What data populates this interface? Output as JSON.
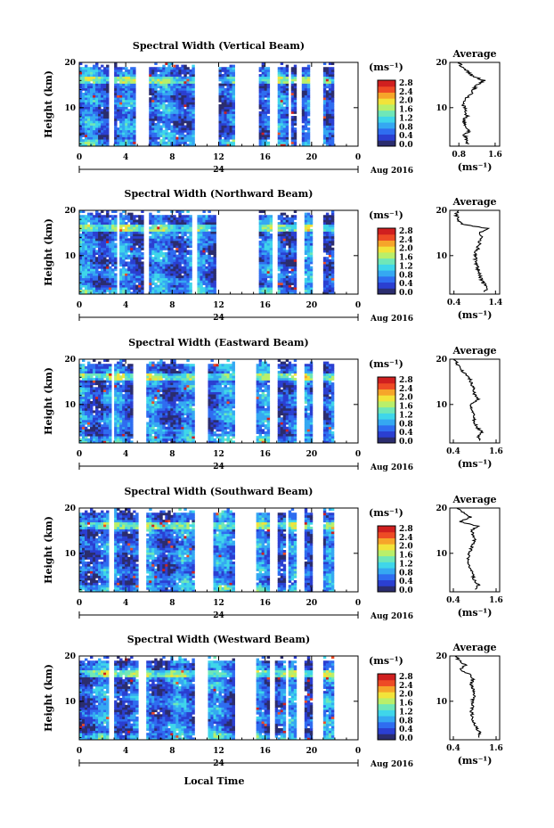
{
  "figure": {
    "xlabel": "Local Time",
    "date_label": "Aug 2016",
    "day_label": "24",
    "colorbar_unit": "(ms⁻¹)",
    "colorbar_ticks": [
      "0.0",
      "0.4",
      "0.8",
      "1.2",
      "1.6",
      "2.0",
      "2.4",
      "2.8"
    ],
    "avg_title": "Average",
    "avg_xlabel": "(ms⁻¹)",
    "colors": [
      "#2b2d6e",
      "#2b3fd1",
      "#2f6df0",
      "#35a8f2",
      "#3fd6ea",
      "#6fe7b8",
      "#b9ef6a",
      "#f2e33a",
      "#f6a52a",
      "#ee4b25",
      "#d01f1f"
    ]
  },
  "chart_data": [
    {
      "type": "heatmap",
      "title": "Spectral Width (Vertical Beam)",
      "ylabel": "Height (km)",
      "x_ticks": [
        "0",
        "4",
        "8",
        "12",
        "16",
        "20",
        "0"
      ],
      "xlim": [
        0,
        24
      ],
      "y_ticks": [
        "20",
        "10"
      ],
      "ylim": [
        1.5,
        20
      ],
      "clim": [
        0.0,
        3.0
      ],
      "gaps": [
        [
          2.5,
          3.0
        ],
        [
          4.9,
          5.9
        ],
        [
          10.0,
          11.9
        ],
        [
          13.3,
          15.5
        ],
        [
          16.5,
          17.1
        ],
        [
          17.9,
          18.2
        ],
        [
          18.6,
          19.2
        ],
        [
          19.9,
          21.1
        ]
      ],
      "average": {
        "x_ticks": [
          "0.8",
          "1.6"
        ],
        "xlim": [
          0.6,
          1.7
        ],
        "y_ticks": [
          "20",
          "10"
        ],
        "profile": [
          [
            2,
            1.0
          ],
          [
            3,
            0.96
          ],
          [
            4,
            0.92
          ],
          [
            5,
            1.05
          ],
          [
            6,
            0.95
          ],
          [
            7,
            0.9
          ],
          [
            8,
            0.98
          ],
          [
            9,
            0.96
          ],
          [
            10,
            0.92
          ],
          [
            11,
            0.9
          ],
          [
            12,
            0.95
          ],
          [
            13,
            1.05
          ],
          [
            14,
            1.12
          ],
          [
            15,
            1.18
          ],
          [
            16,
            1.35
          ],
          [
            17,
            1.1
          ],
          [
            18,
            1.0
          ],
          [
            19,
            0.85
          ],
          [
            20,
            0.8
          ]
        ]
      }
    },
    {
      "type": "heatmap",
      "title": "Spectral Width (Northward Beam)",
      "ylabel": "Height (km)",
      "x_ticks": [
        "0",
        "4",
        "8",
        "12",
        "16",
        "20",
        "0"
      ],
      "xlim": [
        0,
        24
      ],
      "y_ticks": [
        "20",
        "10"
      ],
      "ylim": [
        1.5,
        20
      ],
      "clim": [
        0.0,
        3.0
      ],
      "gaps": [
        [
          3.2,
          3.5
        ],
        [
          5.5,
          6.1
        ],
        [
          9.7,
          10.2
        ],
        [
          11.8,
          15.5
        ],
        [
          16.6,
          17.1
        ],
        [
          17.9,
          18.1
        ],
        [
          18.7,
          19.3
        ],
        [
          20.0,
          21.0
        ]
      ],
      "average": {
        "x_ticks": [
          "0.4",
          "1.4"
        ],
        "xlim": [
          0.3,
          1.5
        ],
        "y_ticks": [
          "20",
          "10"
        ],
        "profile": [
          [
            2,
            1.15
          ],
          [
            3,
            1.2
          ],
          [
            4,
            1.1
          ],
          [
            5,
            1.05
          ],
          [
            6,
            1.0
          ],
          [
            7,
            0.98
          ],
          [
            8,
            0.95
          ],
          [
            9,
            0.92
          ],
          [
            10,
            0.9
          ],
          [
            11,
            0.95
          ],
          [
            12,
            0.98
          ],
          [
            13,
            1.02
          ],
          [
            14,
            1.05
          ],
          [
            15,
            1.0
          ],
          [
            16,
            1.2
          ],
          [
            17,
            0.6
          ],
          [
            18,
            0.5
          ],
          [
            19,
            0.45
          ],
          [
            20,
            0.5
          ]
        ]
      }
    },
    {
      "type": "heatmap",
      "title": "Spectral Width (Eastward Beam)",
      "ylabel": "Height (km)",
      "x_ticks": [
        "0",
        "4",
        "8",
        "12",
        "16",
        "20",
        "0"
      ],
      "xlim": [
        0,
        24
      ],
      "y_ticks": [
        "20",
        "10"
      ],
      "ylim": [
        1.5,
        20
      ],
      "clim": [
        0.0,
        3.0
      ],
      "gaps": [
        [
          2.8,
          3.1
        ],
        [
          4.6,
          5.7
        ],
        [
          10.0,
          11.0
        ],
        [
          13.4,
          15.3
        ],
        [
          16.4,
          17.0
        ],
        [
          17.9,
          18.1
        ],
        [
          18.8,
          19.4
        ],
        [
          20.0,
          21.0
        ]
      ],
      "average": {
        "x_ticks": [
          "0.4",
          "1.6"
        ],
        "xlim": [
          0.3,
          1.7
        ],
        "y_ticks": [
          "20",
          "10"
        ],
        "profile": [
          [
            2,
            1.15
          ],
          [
            3,
            1.1
          ],
          [
            4,
            1.2
          ],
          [
            5,
            1.05
          ],
          [
            6,
            1.0
          ],
          [
            7,
            0.98
          ],
          [
            8,
            0.95
          ],
          [
            9,
            0.92
          ],
          [
            10,
            0.9
          ],
          [
            11,
            1.1
          ],
          [
            12,
            1.0
          ],
          [
            13,
            0.98
          ],
          [
            14,
            0.95
          ],
          [
            15,
            0.9
          ],
          [
            16,
            0.85
          ],
          [
            17,
            0.7
          ],
          [
            18,
            0.6
          ],
          [
            19,
            0.5
          ],
          [
            20,
            0.45
          ]
        ]
      }
    },
    {
      "type": "heatmap",
      "title": "Spectral Width (Southward Beam)",
      "ylabel": "Height (km)",
      "x_ticks": [
        "0",
        "4",
        "8",
        "12",
        "16",
        "20",
        "0"
      ],
      "xlim": [
        0,
        24
      ],
      "y_ticks": [
        "20",
        "10"
      ],
      "ylim": [
        1.5,
        20
      ],
      "clim": [
        0.0,
        3.0
      ],
      "gaps": [
        [
          2.6,
          3.0
        ],
        [
          5.1,
          5.8
        ],
        [
          10.0,
          11.5
        ],
        [
          13.4,
          15.2
        ],
        [
          16.3,
          17.0
        ],
        [
          17.8,
          18.0
        ],
        [
          18.6,
          19.3
        ],
        [
          20.0,
          20.9
        ]
      ],
      "average": {
        "x_ticks": [
          "0.4",
          "1.6"
        ],
        "xlim": [
          0.3,
          1.7
        ],
        "y_ticks": [
          "20",
          "10"
        ],
        "profile": [
          [
            2,
            1.0
          ],
          [
            3,
            1.1
          ],
          [
            4,
            1.0
          ],
          [
            5,
            0.95
          ],
          [
            6,
            0.9
          ],
          [
            7,
            0.85
          ],
          [
            8,
            0.82
          ],
          [
            9,
            0.8
          ],
          [
            10,
            0.85
          ],
          [
            11,
            0.9
          ],
          [
            12,
            0.95
          ],
          [
            13,
            1.0
          ],
          [
            14,
            0.95
          ],
          [
            15,
            0.9
          ],
          [
            16,
            1.1
          ],
          [
            17,
            0.55
          ],
          [
            18,
            0.9
          ],
          [
            19,
            0.7
          ],
          [
            20,
            0.5
          ]
        ]
      }
    },
    {
      "type": "heatmap",
      "title": "Spectral Width (Westward Beam)",
      "ylabel": "Height (km)",
      "x_ticks": [
        "0",
        "4",
        "8",
        "12",
        "16",
        "20",
        "0"
      ],
      "xlim": [
        0,
        24
      ],
      "y_ticks": [
        "20",
        "10"
      ],
      "ylim": [
        1.5,
        20
      ],
      "clim": [
        0.0,
        3.0
      ],
      "gaps": [
        [
          2.6,
          3.0
        ],
        [
          5.0,
          5.8
        ],
        [
          10.0,
          11.0
        ],
        [
          13.4,
          15.3
        ],
        [
          16.3,
          16.9
        ],
        [
          17.8,
          18.1
        ],
        [
          18.7,
          19.4
        ],
        [
          20.0,
          21.0
        ]
      ],
      "average": {
        "x_ticks": [
          "0.4",
          "1.6"
        ],
        "xlim": [
          0.3,
          1.7
        ],
        "y_ticks": [
          "20",
          "10"
        ],
        "profile": [
          [
            2,
            1.1
          ],
          [
            3,
            1.15
          ],
          [
            4,
            1.05
          ],
          [
            5,
            1.0
          ],
          [
            6,
            0.95
          ],
          [
            7,
            0.92
          ],
          [
            8,
            0.9
          ],
          [
            9,
            0.95
          ],
          [
            10,
            0.92
          ],
          [
            11,
            1.0
          ],
          [
            12,
            0.98
          ],
          [
            13,
            0.95
          ],
          [
            14,
            0.9
          ],
          [
            15,
            0.95
          ],
          [
            16,
            0.85
          ],
          [
            17,
            0.6
          ],
          [
            18,
            0.75
          ],
          [
            19,
            0.55
          ],
          [
            20,
            0.5
          ]
        ]
      }
    }
  ]
}
